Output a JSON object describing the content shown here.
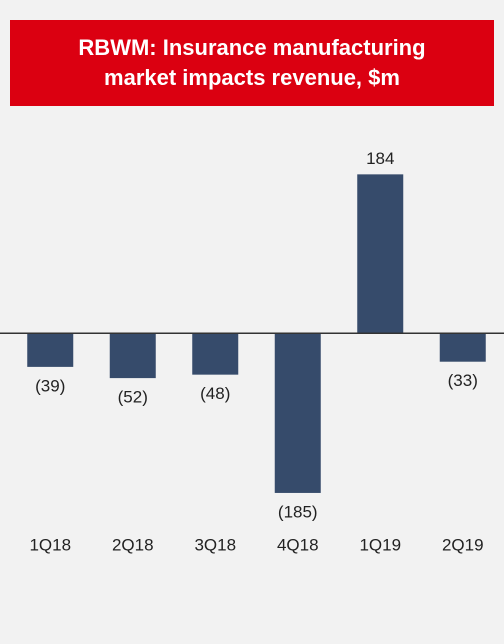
{
  "chart_data": {
    "type": "bar",
    "title": "RBWM: Insurance manufacturing market impacts revenue, $m",
    "categories": [
      "1Q18",
      "2Q18",
      "3Q18",
      "4Q18",
      "1Q19",
      "2Q19"
    ],
    "values": [
      -39,
      -52,
      -48,
      -185,
      184,
      -33
    ],
    "value_labels": [
      "(39)",
      "(52)",
      "(48)",
      "(185)",
      "184",
      "(33)"
    ],
    "color": "#364b6b",
    "ylim": [
      -309,
      240
    ]
  }
}
